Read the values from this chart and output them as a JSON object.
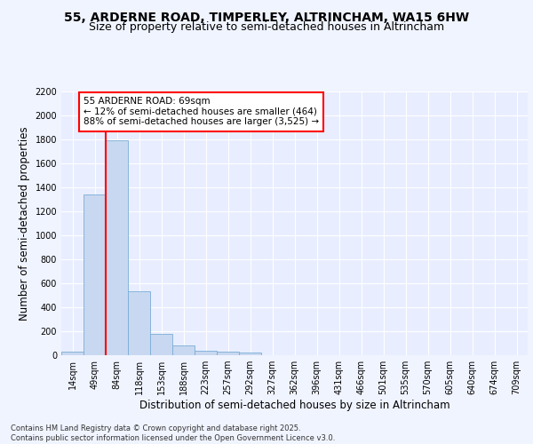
{
  "title_line1": "55, ARDERNE ROAD, TIMPERLEY, ALTRINCHAM, WA15 6HW",
  "title_line2": "Size of property relative to semi-detached houses in Altrincham",
  "xlabel": "Distribution of semi-detached houses by size in Altrincham",
  "ylabel": "Number of semi-detached properties",
  "categories": [
    "14sqm",
    "49sqm",
    "84sqm",
    "118sqm",
    "153sqm",
    "188sqm",
    "223sqm",
    "257sqm",
    "292sqm",
    "327sqm",
    "362sqm",
    "396sqm",
    "431sqm",
    "466sqm",
    "501sqm",
    "535sqm",
    "570sqm",
    "605sqm",
    "640sqm",
    "674sqm",
    "709sqm"
  ],
  "values": [
    30,
    1340,
    1790,
    535,
    175,
    80,
    35,
    28,
    20,
    0,
    0,
    0,
    0,
    0,
    0,
    0,
    0,
    0,
    0,
    0,
    0
  ],
  "bar_color": "#c8d8f0",
  "bar_edge_color": "#7aadd6",
  "vline_color": "red",
  "annotation_text": "55 ARDERNE ROAD: 69sqm\n← 12% of semi-detached houses are smaller (464)\n88% of semi-detached houses are larger (3,525) →",
  "annotation_box_color": "white",
  "annotation_edge_color": "red",
  "ylim": [
    0,
    2200
  ],
  "yticks": [
    0,
    200,
    400,
    600,
    800,
    1000,
    1200,
    1400,
    1600,
    1800,
    2000,
    2200
  ],
  "background_color": "#f0f4ff",
  "plot_bg_color": "#e8eeff",
  "grid_color": "#ffffff",
  "footer_text": "Contains HM Land Registry data © Crown copyright and database right 2025.\nContains public sector information licensed under the Open Government Licence v3.0.",
  "title_fontsize": 10,
  "subtitle_fontsize": 9,
  "axis_label_fontsize": 8.5,
  "tick_fontsize": 7,
  "annotation_fontsize": 7.5,
  "footer_fontsize": 6
}
